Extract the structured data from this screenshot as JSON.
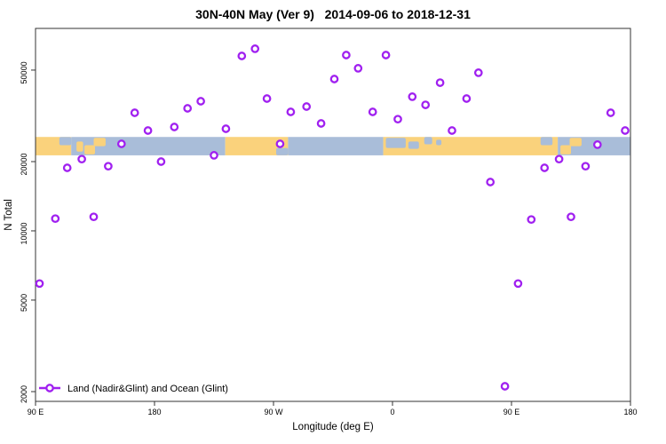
{
  "chart_data": {
    "type": "scatter",
    "title": "30N-40N May (Ver 9)   2014-09-06 to 2018-12-31",
    "xlabel": "Longitude (deg E)",
    "ylabel": "N Total",
    "x_axis_note": "axis spans 450 deg eastward starting at 90E (90E-180-90W-0-90E-180)",
    "x_range": [
      90,
      540
    ],
    "y_scale": "log",
    "y_range": [
      1800,
      77000
    ],
    "grid": false,
    "x_ticks": [
      {
        "t": 90,
        "label": "90 E"
      },
      {
        "t": 180,
        "label": "180"
      },
      {
        "t": 270,
        "label": "90 W"
      },
      {
        "t": 360,
        "label": "0"
      },
      {
        "t": 450,
        "label": "90 E"
      },
      {
        "t": 540,
        "label": "180"
      }
    ],
    "y_ticks": [
      {
        "n": 2000,
        "label": "2000"
      },
      {
        "n": 5000,
        "label": "5000"
      },
      {
        "n": 10000,
        "label": "10000"
      },
      {
        "n": 20000,
        "label": "20000"
      },
      {
        "n": 50000,
        "label": "50000"
      }
    ],
    "legend": {
      "label": "Land (Nadir&Glint) and Ocean (Glint)"
    },
    "marker": {
      "stroke": "#A020F0",
      "fill": "#FFFFFF",
      "radius": 3.7,
      "stroke_width": 2.3
    },
    "map_band": {
      "n_range": [
        21300,
        25600
      ],
      "land_color": "#FAD27C",
      "ocean_color": "#A9BDD9",
      "segments": [
        {
          "t0": 90,
          "t1": 117,
          "kind": "land"
        },
        {
          "t0": 117,
          "t1": 233.5,
          "kind": "ocean"
        },
        {
          "t0": 233.5,
          "t1": 281,
          "kind": "land"
        },
        {
          "t0": 281,
          "t1": 353,
          "kind": "ocean"
        },
        {
          "t0": 353,
          "t1": 485,
          "kind": "land"
        },
        {
          "t0": 485,
          "t1": 540,
          "kind": "ocean"
        }
      ],
      "patches": [
        {
          "t0": 108,
          "t1": 117,
          "f0": 0.0,
          "f1": 0.45,
          "kind": "ocean"
        },
        {
          "t0": 121,
          "t1": 126,
          "f0": 0.25,
          "f1": 0.8,
          "kind": "land"
        },
        {
          "t0": 127,
          "t1": 135,
          "f0": 0.45,
          "f1": 0.95,
          "kind": "land"
        },
        {
          "t0": 134,
          "t1": 143,
          "f0": 0.05,
          "f1": 0.5,
          "kind": "land"
        },
        {
          "t0": 272,
          "t1": 281,
          "f0": 0.6,
          "f1": 1.0,
          "kind": "ocean"
        },
        {
          "t0": 355,
          "t1": 370,
          "f0": 0.05,
          "f1": 0.6,
          "kind": "ocean"
        },
        {
          "t0": 372,
          "t1": 380,
          "f0": 0.25,
          "f1": 0.65,
          "kind": "ocean"
        },
        {
          "t0": 384,
          "t1": 390,
          "f0": 0.0,
          "f1": 0.4,
          "kind": "ocean"
        },
        {
          "t0": 393,
          "t1": 397,
          "f0": 0.15,
          "f1": 0.45,
          "kind": "ocean"
        },
        {
          "t0": 472,
          "t1": 481,
          "f0": 0.0,
          "f1": 0.45,
          "kind": "ocean"
        },
        {
          "t0": 487,
          "t1": 495,
          "f0": 0.45,
          "f1": 0.95,
          "kind": "land"
        },
        {
          "t0": 494,
          "t1": 503,
          "f0": 0.05,
          "f1": 0.5,
          "kind": "land"
        }
      ]
    },
    "points": [
      [
        93,
        5900
      ],
      [
        105,
        11300
      ],
      [
        114,
        18800
      ],
      [
        125,
        20500
      ],
      [
        134,
        11500
      ],
      [
        145,
        19100
      ],
      [
        155,
        23900
      ],
      [
        165,
        32600
      ],
      [
        175,
        27300
      ],
      [
        185,
        20000
      ],
      [
        195,
        28300
      ],
      [
        205,
        34100
      ],
      [
        215,
        36600
      ],
      [
        225,
        21300
      ],
      [
        234,
        27800
      ],
      [
        246,
        57600
      ],
      [
        256,
        61900
      ],
      [
        265,
        37600
      ],
      [
        275,
        23900
      ],
      [
        283,
        32900
      ],
      [
        295,
        34700
      ],
      [
        306,
        29300
      ],
      [
        316,
        45700
      ],
      [
        325,
        58100
      ],
      [
        334,
        50900
      ],
      [
        345,
        32900
      ],
      [
        355,
        58100
      ],
      [
        364,
        30600
      ],
      [
        375,
        38300
      ],
      [
        385,
        35300
      ],
      [
        396,
        44100
      ],
      [
        405,
        27300
      ],
      [
        416,
        37600
      ],
      [
        425,
        48700
      ],
      [
        434,
        16300
      ],
      [
        445,
        2110
      ],
      [
        455,
        5900
      ],
      [
        465,
        11200
      ],
      [
        475,
        18800
      ],
      [
        486,
        20500
      ],
      [
        495,
        11500
      ],
      [
        506,
        19100
      ],
      [
        515,
        23700
      ],
      [
        525,
        32600
      ],
      [
        536,
        27300
      ]
    ]
  }
}
